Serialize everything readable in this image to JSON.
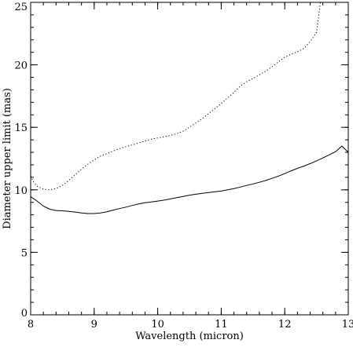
{
  "chart_data": {
    "type": "line",
    "title": "",
    "xlabel": "Wavelength (micron)",
    "ylabel": "Diameter upper limit (mas)",
    "xlim": [
      8,
      13
    ],
    "ylim": [
      0,
      25
    ],
    "x_ticks": [
      8,
      9,
      10,
      11,
      12,
      13
    ],
    "x_tick_labels": [
      "8",
      "9",
      "10",
      "11",
      "12",
      "13"
    ],
    "y_ticks": [
      0,
      5,
      10,
      15,
      20,
      25
    ],
    "y_tick_labels": [
      "0",
      "5",
      "10",
      "15",
      "20",
      "25"
    ],
    "grid": false,
    "legend": "none",
    "series": [
      {
        "style": "solid",
        "color": "#000000",
        "points": [
          [
            8.0,
            9.45
          ],
          [
            8.1,
            9.1
          ],
          [
            8.2,
            8.7
          ],
          [
            8.3,
            8.45
          ],
          [
            8.4,
            8.35
          ],
          [
            8.5,
            8.32
          ],
          [
            8.6,
            8.28
          ],
          [
            8.7,
            8.22
          ],
          [
            8.8,
            8.15
          ],
          [
            8.9,
            8.1
          ],
          [
            9.0,
            8.1
          ],
          [
            9.1,
            8.15
          ],
          [
            9.2,
            8.25
          ],
          [
            9.3,
            8.38
          ],
          [
            9.4,
            8.5
          ],
          [
            9.5,
            8.62
          ],
          [
            9.6,
            8.75
          ],
          [
            9.7,
            8.87
          ],
          [
            9.8,
            8.97
          ],
          [
            9.9,
            9.03
          ],
          [
            10.0,
            9.1
          ],
          [
            10.1,
            9.18
          ],
          [
            10.2,
            9.27
          ],
          [
            10.3,
            9.37
          ],
          [
            10.4,
            9.47
          ],
          [
            10.5,
            9.57
          ],
          [
            10.6,
            9.65
          ],
          [
            10.7,
            9.72
          ],
          [
            10.8,
            9.78
          ],
          [
            10.9,
            9.84
          ],
          [
            11.0,
            9.9
          ],
          [
            11.1,
            10.0
          ],
          [
            11.2,
            10.1
          ],
          [
            11.3,
            10.22
          ],
          [
            11.4,
            10.35
          ],
          [
            11.5,
            10.47
          ],
          [
            11.6,
            10.6
          ],
          [
            11.7,
            10.75
          ],
          [
            11.8,
            10.92
          ],
          [
            11.9,
            11.1
          ],
          [
            12.0,
            11.3
          ],
          [
            12.1,
            11.52
          ],
          [
            12.2,
            11.72
          ],
          [
            12.3,
            11.9
          ],
          [
            12.4,
            12.1
          ],
          [
            12.5,
            12.32
          ],
          [
            12.6,
            12.55
          ],
          [
            12.7,
            12.8
          ],
          [
            12.8,
            13.05
          ],
          [
            12.9,
            13.5
          ],
          [
            13.0,
            13.0
          ]
        ]
      },
      {
        "style": "dotted",
        "color": "#000000",
        "points": [
          [
            8.0,
            11.1
          ],
          [
            8.05,
            10.6
          ],
          [
            8.1,
            10.3
          ],
          [
            8.2,
            10.05
          ],
          [
            8.3,
            10.0
          ],
          [
            8.4,
            10.1
          ],
          [
            8.5,
            10.35
          ],
          [
            8.6,
            10.75
          ],
          [
            8.7,
            11.2
          ],
          [
            8.8,
            11.65
          ],
          [
            8.9,
            12.05
          ],
          [
            9.0,
            12.4
          ],
          [
            9.1,
            12.7
          ],
          [
            9.2,
            12.9
          ],
          [
            9.3,
            13.1
          ],
          [
            9.4,
            13.3
          ],
          [
            9.5,
            13.45
          ],
          [
            9.6,
            13.6
          ],
          [
            9.7,
            13.75
          ],
          [
            9.8,
            13.9
          ],
          [
            9.9,
            14.05
          ],
          [
            10.0,
            14.15
          ],
          [
            10.1,
            14.25
          ],
          [
            10.2,
            14.35
          ],
          [
            10.3,
            14.5
          ],
          [
            10.4,
            14.7
          ],
          [
            10.5,
            15.0
          ],
          [
            10.6,
            15.35
          ],
          [
            10.7,
            15.7
          ],
          [
            10.8,
            16.1
          ],
          [
            10.9,
            16.5
          ],
          [
            11.0,
            16.9
          ],
          [
            11.1,
            17.35
          ],
          [
            11.2,
            17.8
          ],
          [
            11.3,
            18.3
          ],
          [
            11.4,
            18.65
          ],
          [
            11.5,
            18.9
          ],
          [
            11.6,
            19.2
          ],
          [
            11.7,
            19.5
          ],
          [
            11.8,
            19.85
          ],
          [
            11.9,
            20.25
          ],
          [
            12.0,
            20.6
          ],
          [
            12.1,
            20.85
          ],
          [
            12.2,
            21.05
          ],
          [
            12.3,
            21.3
          ],
          [
            12.4,
            21.85
          ],
          [
            12.5,
            22.6
          ],
          [
            12.53,
            23.7
          ],
          [
            12.56,
            25.0
          ]
        ]
      }
    ]
  }
}
